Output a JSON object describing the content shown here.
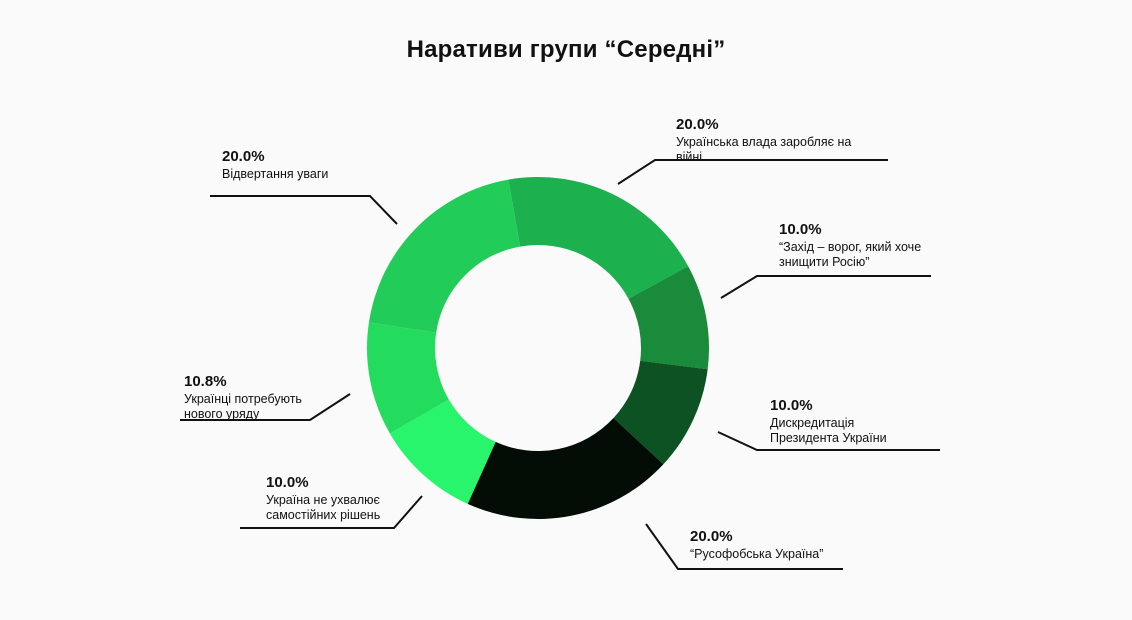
{
  "chart_data": {
    "type": "pie",
    "title": "Наративи групи “Середні”",
    "slices": [
      {
        "value": 20.0,
        "pct_label": "20.0%",
        "text_lines": [
          "Українська влада заробляє на",
          "війні"
        ],
        "color": "#1db04e"
      },
      {
        "value": 10.0,
        "pct_label": "10.0%",
        "text_lines": [
          "“Захід – ворог, який хоче",
          "знищити Росію”"
        ],
        "color": "#1a8a3b"
      },
      {
        "value": 10.0,
        "pct_label": "10.0%",
        "text_lines": [
          "Дискредитація",
          "Президента України"
        ],
        "color": "#0c5223"
      },
      {
        "value": 20.0,
        "pct_label": "20.0%",
        "text_lines": [
          "“Русофобська Україна”"
        ],
        "color": "#030d05"
      },
      {
        "value": 10.0,
        "pct_label": "10.0%",
        "text_lines": [
          "Україна не ухвалює",
          "самостійних рішень"
        ],
        "color": "#28f46c"
      },
      {
        "value": 10.8,
        "pct_label": "10.8%",
        "text_lines": [
          "Українці потребують",
          "нового уряду"
        ],
        "color": "#23dc5e"
      },
      {
        "value": 20.0,
        "pct_label": "20.0%",
        "text_lines": [
          "Відвертання уваги"
        ],
        "color": "#22cc58"
      }
    ]
  }
}
